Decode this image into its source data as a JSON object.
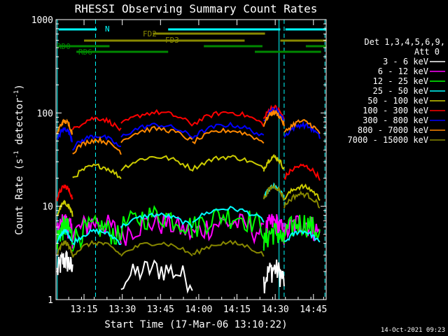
{
  "chart_data": {
    "type": "line",
    "title": "RHESSI Observing Summary Count Rates",
    "xlabel": "Start Time (17-Mar-06 13:10:22)",
    "ylabel_main": "Count Rate (s",
    "ylabel_sup1": "-1",
    "ylabel_mid": " detector",
    "ylabel_sup2": "-1",
    "ylabel_end": ")",
    "y_scale": "log",
    "ylim": [
      1,
      1000
    ],
    "xlim_min": [
      784,
      890
    ],
    "y_ticks": [
      {
        "value": 1000,
        "label": "1000"
      },
      {
        "value": 100,
        "label": "100"
      },
      {
        "value": 10,
        "label": "10"
      },
      {
        "value": 1,
        "label": "1"
      }
    ],
    "x_ticks": [
      {
        "value": 795,
        "label": "13:15"
      },
      {
        "value": 810,
        "label": "13:30"
      },
      {
        "value": 825,
        "label": "13:45"
      },
      {
        "value": 840,
        "label": "14:00"
      },
      {
        "value": 855,
        "label": "14:15"
      },
      {
        "value": 870,
        "label": "14:30"
      },
      {
        "value": 885,
        "label": "14:45"
      }
    ],
    "legend_title_1": "Det 1,3,4,5,6,9,",
    "legend_title_2": "Att 0",
    "series": [
      {
        "name": "3 - 6 keV",
        "color": "#ffffff"
      },
      {
        "name": "6 - 12 keV",
        "color": "#ff00ff"
      },
      {
        "name": "12 - 25 keV",
        "color": "#00ff00"
      },
      {
        "name": "25 - 50 keV",
        "color": "#00ffff"
      },
      {
        "name": "50 - 100 keV",
        "color": "#cccc00"
      },
      {
        "name": "100 - 300 keV",
        "color": "#ff0000"
      },
      {
        "name": "300 - 800 keV",
        "color": "#0000ff"
      },
      {
        "name": "800 - 7000 keV",
        "color": "#ff8800"
      },
      {
        "name": "7000 - 15000 keV",
        "color": "#888800"
      }
    ],
    "flag_labels": {
      "n": "N",
      "fd2": "FD2",
      "fd3": "FD3",
      "rd0": "RD0",
      "rd6": "RD6"
    },
    "flags": [
      {
        "label": "N",
        "color": "#00ffff",
        "y_level": 1,
        "segments": [
          [
            785,
            800
          ],
          [
            828,
            872
          ],
          [
            874,
            890
          ]
        ]
      },
      {
        "label": "FD2",
        "color": "#888800",
        "y_level": 2,
        "segments": [
          [
            822,
            866
          ]
        ]
      },
      {
        "label": "FD3",
        "color": "#888800",
        "y_level": 3,
        "segments": [
          [
            795,
            858
          ],
          [
            872,
            890
          ]
        ]
      },
      {
        "label": "RD0",
        "color": "#008800",
        "y_level": 4,
        "segments": [
          [
            785,
            805
          ],
          [
            842,
            865
          ],
          [
            882,
            890
          ]
        ]
      },
      {
        "label": "RD6",
        "color": "#008800",
        "y_level": 5,
        "segments": [
          [
            792,
            828
          ],
          [
            862,
            888
          ]
        ]
      }
    ],
    "vertical_markers": {
      "solid": [
        784.5,
        871.5
      ],
      "dashed": [
        799.5,
        873.5,
        889.5
      ]
    },
    "segments_min": [
      [
        784.5,
        790.5
      ],
      [
        790.5,
        809.5
      ],
      [
        809.5,
        837.5
      ],
      [
        837.5,
        865.5
      ],
      [
        865.5,
        873.5
      ],
      [
        873.5,
        887.5
      ]
    ],
    "series_levels": {
      "3 - 6 keV": [
        2,
        0,
        1.6,
        0,
        1.6,
        0
      ],
      "6 - 12 keV": [
        5,
        5,
        5,
        5,
        5,
        5
      ],
      "12 - 25 keV": [
        4.5,
        4.5,
        6,
        6,
        4,
        5
      ],
      "25 - 50 keV": [
        4,
        4,
        6,
        7,
        12,
        4
      ],
      "50 - 100 keV": [
        8,
        20,
        25,
        25,
        25,
        12
      ],
      "100 - 300 keV": [
        12,
        65,
        75,
        75,
        85,
        20
      ],
      "300 - 800 keV": [
        50,
        42,
        55,
        55,
        80,
        55
      ],
      "800 - 7000 keV": [
        60,
        38,
        50,
        48,
        75,
        60
      ],
      "7000 - 15000 keV": [
        3,
        3,
        3,
        3,
        12,
        10
      ]
    },
    "footer_timestamp": "14-Oct-2021 09:23"
  }
}
